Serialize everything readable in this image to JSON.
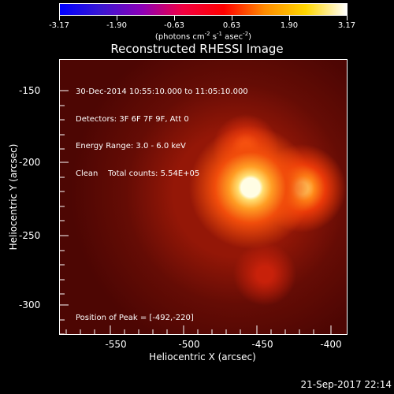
{
  "colorbar": {
    "labels": [
      "-3.17",
      "-1.90",
      "-0.63",
      "0.63",
      "1.90",
      "3.17"
    ],
    "unit_main": "(photons cm",
    "unit_exp1": "-2",
    "unit_mid": " s",
    "unit_exp2": "-1",
    "unit_tail": " asec",
    "unit_exp3": "-2",
    "unit_end": ")",
    "gradient_colors": [
      "#0000ff",
      "#3a17d1",
      "#8c00b8",
      "#f20041",
      "#ff0000",
      "#ff8c00",
      "#ffd700",
      "#ffffff"
    ]
  },
  "plot": {
    "title": "Reconstructed RHESSI Image",
    "info_lines": [
      "30-Dec-2014 10:55:10.000 to 11:05:10.000",
      "Detectors: 3F 6F 7F 9F, Att 0",
      "Energy Range: 3.0 - 6.0 keV",
      "Clean    Total counts: 5.54E+05"
    ],
    "peak_text": "Position of Peak = [-492,-220]",
    "xlabel": "Heliocentric X (arcsec)",
    "ylabel": "Heliocentric Y (arcsec)",
    "x_ticks": [
      "-550",
      "-500",
      "-450",
      "-400"
    ],
    "y_ticks": [
      "-150",
      "-200",
      "-250",
      "-300"
    ]
  },
  "footer": {
    "timestamp": "21-Sep-2017 22:14"
  }
}
